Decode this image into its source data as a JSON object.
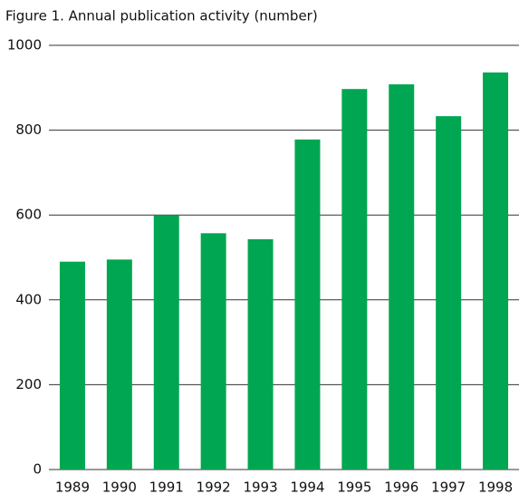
{
  "chart_data": {
    "type": "bar",
    "title": "Figure 1. Annual publication activity (number)",
    "categories": [
      "1989",
      "1990",
      "1991",
      "1992",
      "1993",
      "1994",
      "1995",
      "1996",
      "1997",
      "1998"
    ],
    "values": [
      490,
      495,
      600,
      557,
      543,
      778,
      897,
      908,
      833,
      936
    ],
    "color": "#00a651",
    "ylim": [
      0,
      1000
    ],
    "yticks": [
      0,
      200,
      400,
      600,
      800,
      1000
    ],
    "grid": true
  }
}
